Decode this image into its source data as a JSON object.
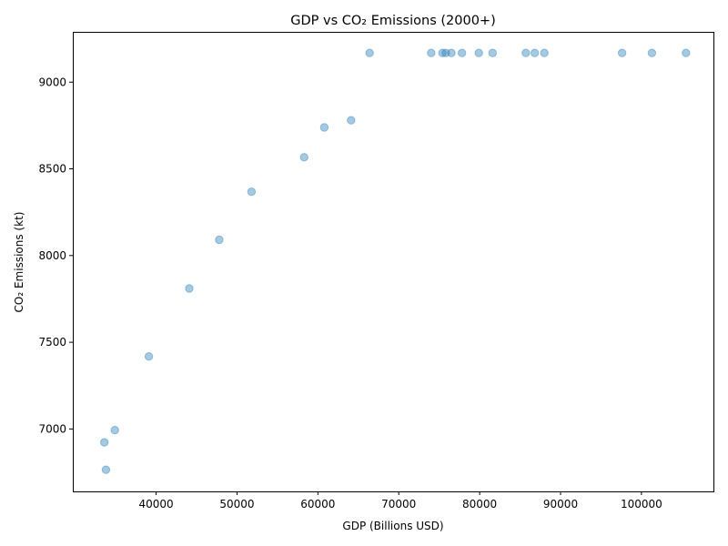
{
  "chart_data": {
    "type": "scatter",
    "title": "GDP vs CO₂ Emissions (2000+)",
    "xlabel": "GDP (Billions USD)",
    "ylabel": "CO₂ Emissions (kt)",
    "xlim": [
      29700,
      108900
    ],
    "ylim": [
      6640,
      9290
    ],
    "xticks": [
      40000,
      50000,
      60000,
      70000,
      80000,
      90000,
      100000
    ],
    "yticks": [
      7000,
      7500,
      8000,
      8500,
      9000
    ],
    "grid": false,
    "marker_color": "#1f77b4",
    "marker_alpha": 0.4,
    "points": [
      {
        "x": 33800,
        "y": 6765
      },
      {
        "x": 33600,
        "y": 6923
      },
      {
        "x": 34900,
        "y": 6993
      },
      {
        "x": 39100,
        "y": 7418
      },
      {
        "x": 44100,
        "y": 7810
      },
      {
        "x": 47800,
        "y": 8091
      },
      {
        "x": 51800,
        "y": 8368
      },
      {
        "x": 58300,
        "y": 8567
      },
      {
        "x": 60800,
        "y": 8739
      },
      {
        "x": 64100,
        "y": 8780
      },
      {
        "x": 66400,
        "y": 9168
      },
      {
        "x": 74000,
        "y": 9168
      },
      {
        "x": 75400,
        "y": 9168
      },
      {
        "x": 75800,
        "y": 9168
      },
      {
        "x": 76500,
        "y": 9168
      },
      {
        "x": 77800,
        "y": 9168
      },
      {
        "x": 79900,
        "y": 9168
      },
      {
        "x": 81600,
        "y": 9168
      },
      {
        "x": 85700,
        "y": 9168
      },
      {
        "x": 86800,
        "y": 9168
      },
      {
        "x": 88000,
        "y": 9168
      },
      {
        "x": 97600,
        "y": 9168
      },
      {
        "x": 101300,
        "y": 9168
      },
      {
        "x": 105500,
        "y": 9168
      }
    ]
  }
}
